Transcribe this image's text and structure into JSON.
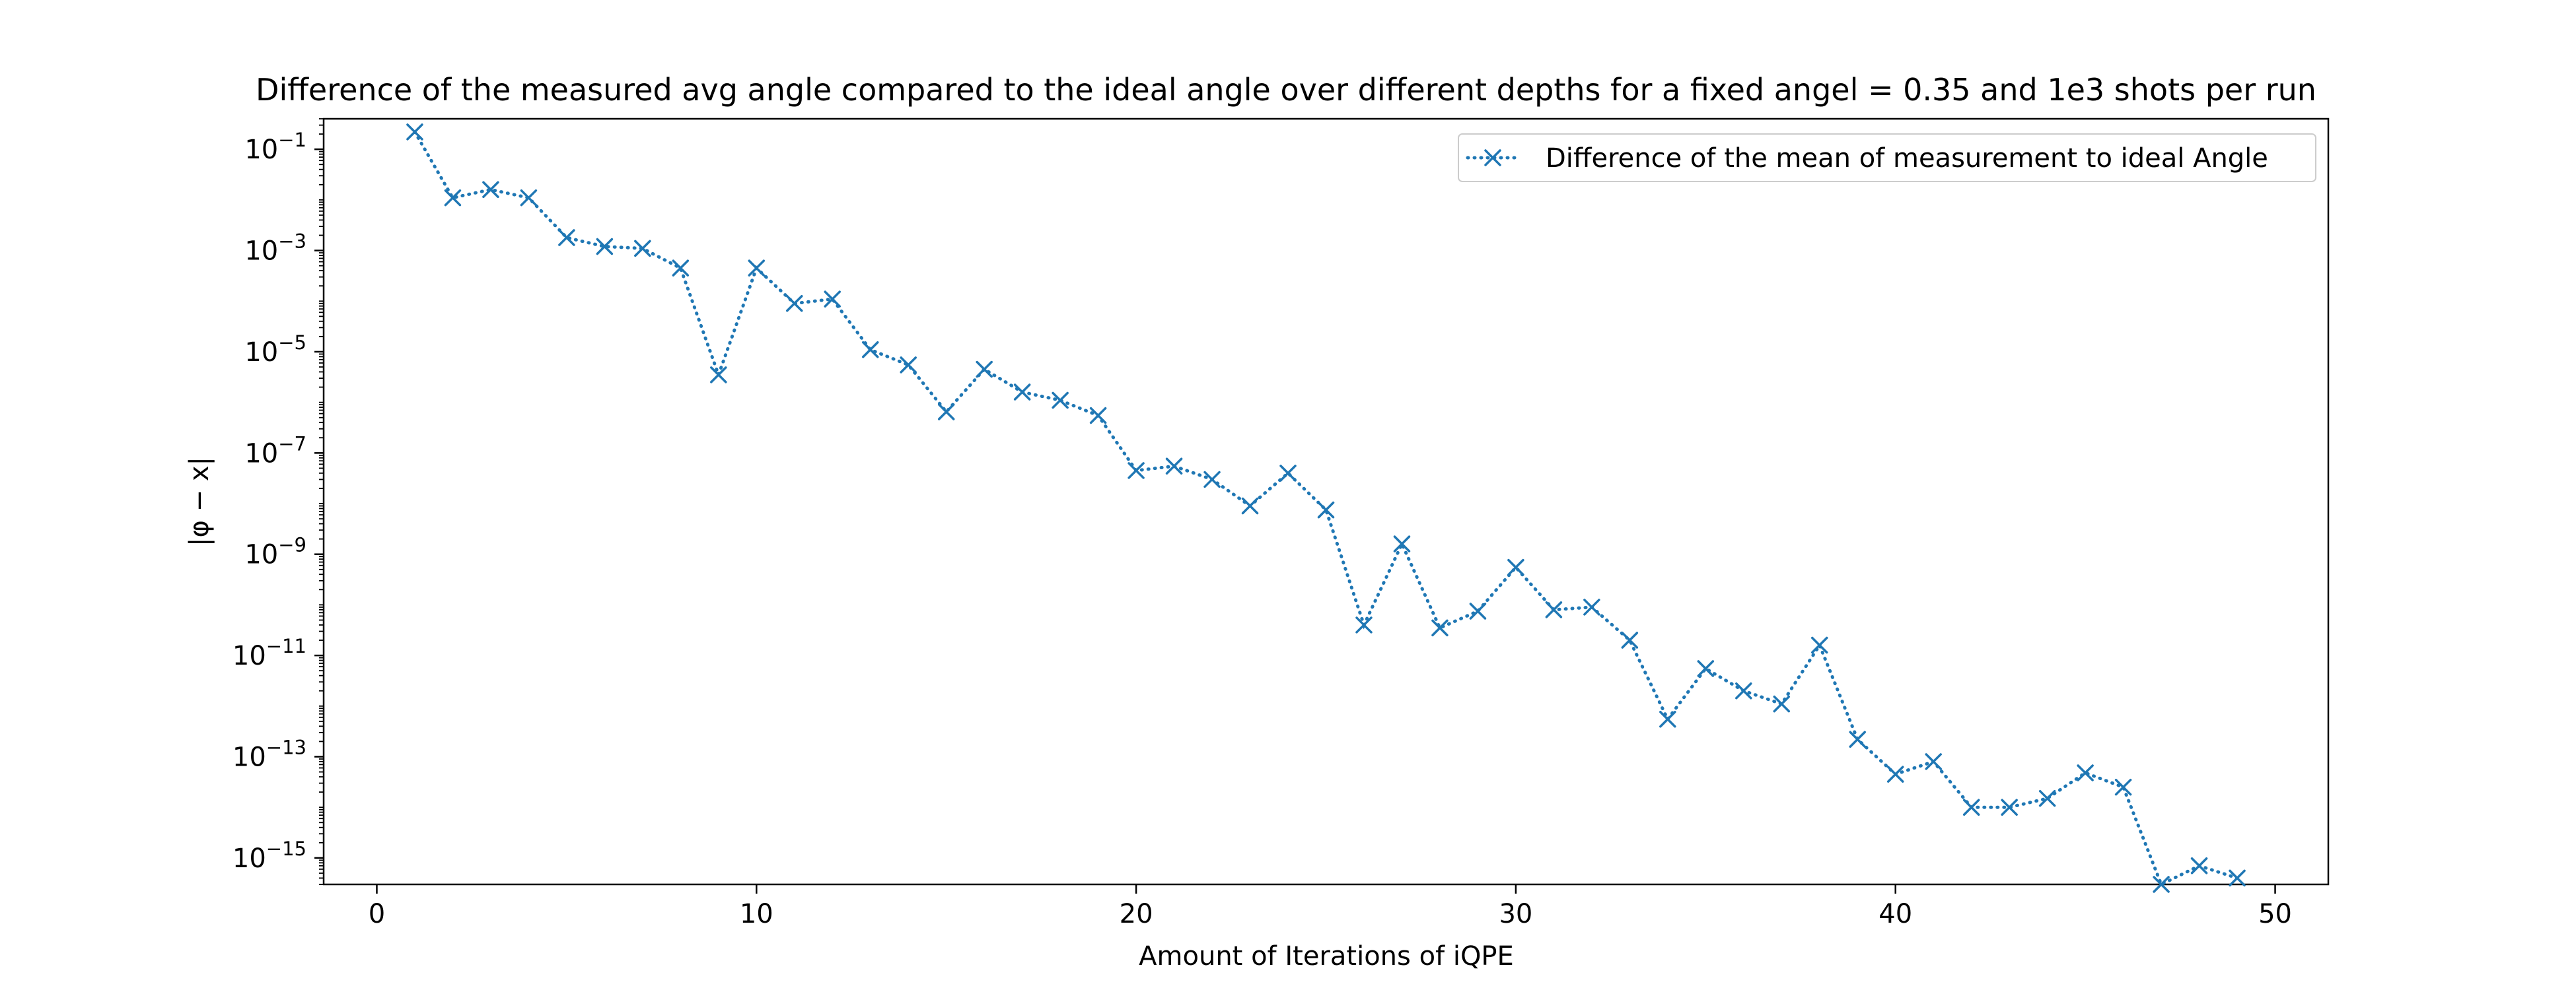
{
  "chart_data": {
    "type": "line",
    "title": "Difference of the measured avg angle compared to the ideal angle over different depths for a fixed angel = 0.35 and 1e3 shots per run",
    "xlabel": "Amount of Iterations of iQPE",
    "ylabel": "|φ − x|",
    "y_scale": "log",
    "xlim": [
      -1.4,
      51.4
    ],
    "ylim": [
      3e-16,
      0.4
    ],
    "x_ticks": [
      0,
      10,
      20,
      30,
      40,
      50
    ],
    "y_ticks": [
      {
        "base": "10",
        "exp": "−1",
        "value": 0.1
      },
      {
        "base": "10",
        "exp": "−3",
        "value": 0.001
      },
      {
        "base": "10",
        "exp": "−5",
        "value": 1e-05
      },
      {
        "base": "10",
        "exp": "−7",
        "value": 1e-07
      },
      {
        "base": "10",
        "exp": "−9",
        "value": 1e-09
      },
      {
        "base": "10",
        "exp": "−11",
        "value": 1e-11
      },
      {
        "base": "10",
        "exp": "−13",
        "value": 1e-13
      },
      {
        "base": "10",
        "exp": "−15",
        "value": 1e-15
      }
    ],
    "grid": false,
    "legend_position": "top-right",
    "series": [
      {
        "name": "Difference of the mean of measurement to ideal Angle",
        "color": "#1f77b4",
        "linestyle": "dotted",
        "marker": "x",
        "x": [
          1,
          2,
          3,
          4,
          5,
          6,
          7,
          8,
          9,
          10,
          11,
          12,
          13,
          14,
          15,
          16,
          17,
          18,
          19,
          20,
          21,
          22,
          23,
          24,
          25,
          26,
          27,
          28,
          29,
          30,
          31,
          32,
          33,
          34,
          35,
          36,
          37,
          38,
          39,
          40,
          41,
          42,
          43,
          44,
          45,
          46,
          47,
          48,
          49
        ],
        "y": [
          0.22,
          0.011,
          0.016,
          0.011,
          0.0018,
          0.0012,
          0.0011,
          0.00045,
          3.5e-06,
          0.00045,
          9e-05,
          0.00011,
          1.1e-05,
          5.5e-06,
          6.5e-07,
          4.5e-06,
          1.6e-06,
          1.1e-06,
          5.5e-07,
          4.5e-08,
          5.5e-08,
          3e-08,
          9e-09,
          4e-08,
          7.5e-09,
          4e-11,
          1.6e-09,
          3.5e-11,
          7.5e-11,
          5.5e-10,
          8e-11,
          9e-11,
          2e-11,
          5.5e-13,
          5.5e-12,
          2e-12,
          1.1e-12,
          1.6e-11,
          2.2e-13,
          4.5e-14,
          8e-14,
          1e-14,
          1e-14,
          1.5e-14,
          4.8e-14,
          2.5e-14,
          3e-16,
          7e-16,
          4e-16
        ]
      }
    ]
  }
}
